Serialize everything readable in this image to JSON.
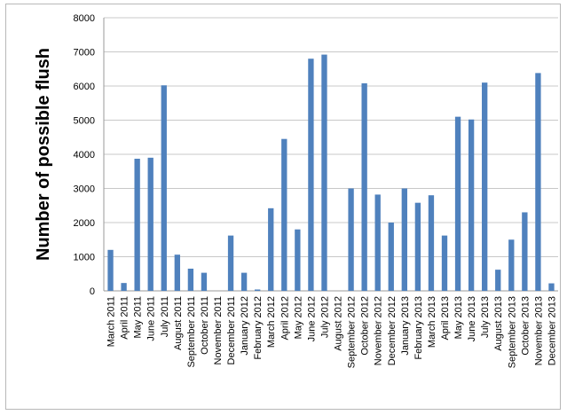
{
  "chart_data": {
    "type": "bar",
    "title": "",
    "xlabel": "",
    "ylabel": "Number of possible flush",
    "ylim": [
      0,
      8000
    ],
    "yticks": [
      0,
      1000,
      2000,
      3000,
      4000,
      5000,
      6000,
      7000,
      8000
    ],
    "grid": true,
    "bar_color": "#4F81BD",
    "categories": [
      "March 2011",
      "April 2011",
      "May 2011",
      "June 2011",
      "July 2011",
      "August 2011",
      "September 2011",
      "October 2011",
      "November 2011",
      "December 2011",
      "January 2012",
      "February 2012",
      "March 2012",
      "April 2012",
      "May 2012",
      "June 2012",
      "July 2012",
      "August 2012",
      "September 2012",
      "October 2012",
      "November 2012",
      "December 2012",
      "January 2013",
      "February 2013",
      "March 2013",
      "April 2013",
      "May 2013",
      "June 2013",
      "July 2013",
      "August 2013",
      "September 2013",
      "October 2013",
      "November 2013",
      "December 2013"
    ],
    "values": [
      1200,
      230,
      3870,
      3900,
      6020,
      1060,
      650,
      530,
      0,
      1620,
      530,
      40,
      2420,
      4450,
      1800,
      6800,
      6920,
      0,
      3000,
      6080,
      2820,
      2000,
      3000,
      2580,
      2800,
      1620,
      5100,
      5020,
      6100,
      620,
      1500,
      2300,
      6380,
      220
    ]
  }
}
